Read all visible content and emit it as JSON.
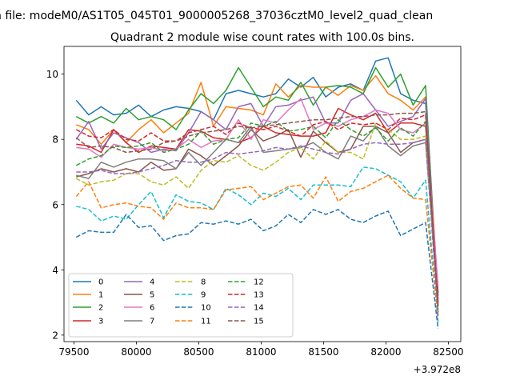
{
  "figure": {
    "suptitle": "n file: modeM0/AS1T05_045T01_9000005268_37036cztM0_level2_quad_clean",
    "title": "Quadrant 2 module wise count rates with 100.0s bins.",
    "offset_text": "+3.972e8"
  },
  "chart_data": {
    "type": "line",
    "title": "Quadrant 2 module wise count rates with 100.0s bins.",
    "xlabel": "",
    "ylabel": "",
    "xlim": [
      79420,
      82600
    ],
    "ylim": [
      1.8,
      10.85
    ],
    "x_offset_label": "+3.972e8",
    "x_ticks": [
      79500,
      80000,
      80500,
      81000,
      81500,
      82000,
      82500
    ],
    "y_ticks": [
      2,
      4,
      6,
      8,
      10
    ],
    "grid": false,
    "legend_position": "lower-left",
    "legend_ncol": 4,
    "x": [
      79518,
      79618,
      79718,
      79818,
      79918,
      80018,
      80118,
      80218,
      80318,
      80418,
      80518,
      80618,
      80718,
      80818,
      80918,
      81018,
      81118,
      81218,
      81318,
      81418,
      81518,
      81618,
      81718,
      81818,
      81918,
      82018,
      82118,
      82218,
      82318,
      82418
    ],
    "series": [
      {
        "name": "0",
        "color": "#1f77b4",
        "dash": "solid",
        "values": [
          9.2,
          8.75,
          9.0,
          8.75,
          8.8,
          9.05,
          8.7,
          8.9,
          9.0,
          8.95,
          8.85,
          8.6,
          9.4,
          9.5,
          9.4,
          9.3,
          9.4,
          9.85,
          9.6,
          9.9,
          9.3,
          9.6,
          9.7,
          9.5,
          10.4,
          10.5,
          9.4,
          9.2,
          9.1,
          3.2
        ]
      },
      {
        "name": "1",
        "color": "#ff7f0e",
        "dash": "solid",
        "values": [
          8.45,
          8.3,
          7.85,
          8.3,
          7.9,
          8.3,
          8.6,
          8.2,
          8.5,
          8.8,
          9.75,
          8.4,
          9.0,
          8.95,
          8.9,
          8.75,
          9.7,
          9.3,
          9.65,
          9.6,
          9.6,
          9.35,
          9.65,
          9.5,
          9.95,
          9.4,
          9.2,
          8.9,
          9.3,
          3.3
        ]
      },
      {
        "name": "2",
        "color": "#2ca02c",
        "dash": "solid",
        "values": [
          8.7,
          8.5,
          8.7,
          8.5,
          8.95,
          8.6,
          8.7,
          8.6,
          8.3,
          8.9,
          9.4,
          9.1,
          9.5,
          10.2,
          9.6,
          9.0,
          9.3,
          9.2,
          9.75,
          9.05,
          9.6,
          9.65,
          9.6,
          9.4,
          10.2,
          9.6,
          10.0,
          9.05,
          9.65,
          2.9
        ]
      },
      {
        "name": "3",
        "color": "#d62728",
        "dash": "solid",
        "values": [
          7.85,
          7.8,
          7.6,
          8.3,
          7.9,
          7.6,
          7.8,
          7.75,
          7.7,
          8.3,
          8.25,
          8.05,
          8.0,
          7.9,
          8.05,
          8.4,
          8.2,
          8.15,
          8.1,
          8.1,
          8.2,
          8.95,
          8.75,
          8.6,
          8.8,
          8.2,
          8.5,
          8.5,
          8.4,
          3.1
        ]
      },
      {
        "name": "4",
        "color": "#9467bd",
        "dash": "solid",
        "values": [
          8.0,
          8.55,
          7.7,
          8.2,
          8.05,
          7.9,
          7.6,
          7.7,
          7.65,
          8.2,
          8.85,
          8.6,
          8.3,
          9.0,
          9.1,
          8.4,
          9.0,
          9.05,
          9.2,
          9.3,
          8.5,
          8.5,
          9.2,
          9.4,
          8.9,
          8.4,
          8.55,
          8.7,
          9.25,
          3.0
        ]
      },
      {
        "name": "5",
        "color": "#8c564b",
        "dash": "solid",
        "values": [
          6.85,
          6.95,
          7.1,
          7.0,
          7.1,
          7.0,
          7.3,
          7.05,
          7.1,
          7.7,
          7.5,
          7.2,
          7.5,
          7.8,
          8.3,
          7.95,
          8.1,
          8.3,
          7.45,
          8.25,
          7.9,
          7.6,
          7.7,
          8.4,
          8.4,
          8.2,
          7.6,
          7.9,
          8.0,
          3.3
        ]
      },
      {
        "name": "6",
        "color": "#e377c2",
        "dash": "solid",
        "values": [
          7.75,
          7.7,
          7.45,
          7.85,
          7.75,
          7.7,
          7.75,
          7.65,
          7.7,
          8.0,
          7.75,
          7.95,
          8.0,
          8.6,
          8.0,
          8.6,
          8.5,
          8.9,
          9.25,
          8.3,
          8.5,
          8.4,
          8.6,
          8.7,
          8.9,
          8.8,
          8.3,
          8.2,
          8.5,
          3.5
        ]
      },
      {
        "name": "7",
        "color": "#7f7f7f",
        "dash": "solid",
        "values": [
          6.9,
          6.8,
          7.3,
          7.15,
          7.3,
          7.4,
          7.4,
          7.35,
          7.1,
          7.6,
          7.2,
          7.6,
          8.0,
          7.9,
          8.4,
          7.6,
          7.65,
          7.7,
          7.75,
          7.9,
          7.6,
          7.4,
          8.1,
          7.95,
          8.4,
          7.8,
          7.5,
          7.8,
          7.9,
          3.0
        ]
      },
      {
        "name": "8",
        "color": "#bcbd22",
        "dash": "dashed",
        "values": [
          6.8,
          6.6,
          6.7,
          6.75,
          6.95,
          6.95,
          6.7,
          6.6,
          6.85,
          6.5,
          7.05,
          7.35,
          7.3,
          7.5,
          7.2,
          7.05,
          7.3,
          7.6,
          7.75,
          7.4,
          7.95,
          7.6,
          7.6,
          7.4,
          8.5,
          8.3,
          8.0,
          8.0,
          8.1,
          2.8
        ]
      },
      {
        "name": "9",
        "color": "#17becf",
        "dash": "dashed",
        "values": [
          5.95,
          5.85,
          5.5,
          5.65,
          5.55,
          6.0,
          6.4,
          5.6,
          6.3,
          6.1,
          6.05,
          5.85,
          6.5,
          6.3,
          6.0,
          6.35,
          6.25,
          6.5,
          6.15,
          6.6,
          6.6,
          6.6,
          6.55,
          7.15,
          7.1,
          6.9,
          6.7,
          6.2,
          6.75,
          2.4
        ]
      },
      {
        "name": "10",
        "color": "#1f77b4",
        "dash": "dashed",
        "values": [
          5.0,
          5.2,
          5.15,
          5.15,
          5.7,
          5.3,
          5.35,
          4.9,
          5.05,
          5.1,
          5.45,
          5.4,
          5.5,
          5.4,
          5.55,
          5.2,
          5.35,
          5.7,
          5.45,
          5.85,
          5.7,
          5.85,
          5.55,
          5.45,
          5.65,
          5.8,
          5.05,
          5.25,
          5.45,
          2.2
        ]
      },
      {
        "name": "11",
        "color": "#ff7f0e",
        "dash": "dashed",
        "values": [
          6.25,
          6.7,
          5.9,
          6.0,
          6.05,
          5.95,
          5.9,
          5.55,
          6.05,
          5.9,
          5.9,
          5.85,
          6.45,
          6.5,
          6.55,
          6.15,
          6.35,
          6.55,
          6.6,
          6.2,
          6.85,
          6.1,
          6.4,
          6.5,
          6.7,
          6.9,
          6.5,
          6.2,
          6.15,
          2.5
        ]
      },
      {
        "name": "12",
        "color": "#2ca02c",
        "dash": "dashed",
        "values": [
          7.2,
          7.4,
          7.5,
          7.8,
          7.75,
          7.8,
          7.9,
          7.6,
          7.7,
          7.85,
          8.25,
          7.85,
          8.0,
          8.05,
          8.5,
          8.4,
          8.55,
          8.25,
          8.3,
          8.4,
          8.05,
          8.6,
          8.3,
          8.1,
          8.35,
          7.95,
          8.35,
          8.1,
          8.55,
          2.7
        ]
      },
      {
        "name": "13",
        "color": "#d62728",
        "dash": "dashed",
        "values": [
          8.3,
          8.1,
          8.05,
          8.3,
          8.0,
          7.95,
          8.2,
          7.95,
          7.95,
          8.2,
          8.3,
          8.4,
          8.15,
          8.5,
          8.35,
          8.3,
          8.4,
          8.25,
          8.1,
          8.45,
          8.55,
          8.3,
          8.5,
          8.45,
          8.5,
          8.3,
          8.65,
          8.6,
          8.75,
          2.9
        ]
      },
      {
        "name": "14",
        "color": "#9467bd",
        "dash": "dashed",
        "values": [
          7.0,
          7.0,
          7.05,
          6.95,
          6.95,
          7.0,
          7.1,
          7.2,
          7.35,
          7.3,
          7.3,
          7.4,
          7.6,
          7.55,
          7.6,
          7.65,
          7.75,
          7.7,
          7.8,
          7.7,
          7.6,
          7.55,
          7.7,
          7.85,
          7.9,
          7.85,
          7.85,
          7.9,
          8.0,
          2.6
        ]
      },
      {
        "name": "15",
        "color": "#8c564b",
        "dash": "dashed",
        "values": [
          8.05,
          7.75,
          7.8,
          7.75,
          7.6,
          7.65,
          7.7,
          7.9,
          7.95,
          8.1,
          8.2,
          8.25,
          8.3,
          8.4,
          8.35,
          8.4,
          8.45,
          8.5,
          8.55,
          8.6,
          8.6,
          8.65,
          8.7,
          8.7,
          8.75,
          8.75,
          8.8,
          8.8,
          8.85,
          2.8
        ]
      }
    ]
  }
}
